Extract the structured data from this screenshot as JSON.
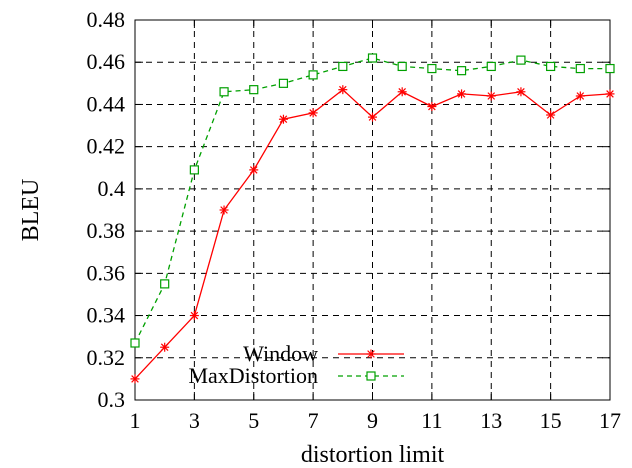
{
  "chart_data": {
    "type": "line",
    "xlabel": "distortion limit",
    "ylabel": "BLEU",
    "xlim": [
      1,
      17
    ],
    "ylim": [
      0.3,
      0.48
    ],
    "xticks": [
      "1",
      "3",
      "5",
      "7",
      "9",
      "11",
      "13",
      "15",
      "17"
    ],
    "yticks": [
      "0.3",
      "0.32",
      "0.34",
      "0.36",
      "0.38",
      "0.4",
      "0.42",
      "0.44",
      "0.46",
      "0.48"
    ],
    "grid": true,
    "legend_position": "bottom-center",
    "series": [
      {
        "name": "Window",
        "color": "#ff0000",
        "line_style": "solid",
        "marker": "star",
        "x": [
          1,
          2,
          3,
          4,
          5,
          6,
          7,
          8,
          9,
          10,
          11,
          12,
          13,
          14,
          15,
          16,
          17
        ],
        "values": [
          0.31,
          0.325,
          0.34,
          0.39,
          0.409,
          0.433,
          0.436,
          0.447,
          0.434,
          0.446,
          0.439,
          0.445,
          0.444,
          0.446,
          0.435,
          0.444,
          0.445
        ]
      },
      {
        "name": "MaxDistortion",
        "color": "#00a000",
        "line_style": "dashed",
        "marker": "square",
        "x": [
          1,
          2,
          3,
          4,
          5,
          6,
          7,
          8,
          9,
          10,
          11,
          12,
          13,
          14,
          15,
          16,
          17
        ],
        "values": [
          0.327,
          0.355,
          0.409,
          0.446,
          0.447,
          0.45,
          0.454,
          0.458,
          0.462,
          0.458,
          0.457,
          0.456,
          0.458,
          0.461,
          0.458,
          0.457,
          0.457
        ]
      }
    ]
  }
}
